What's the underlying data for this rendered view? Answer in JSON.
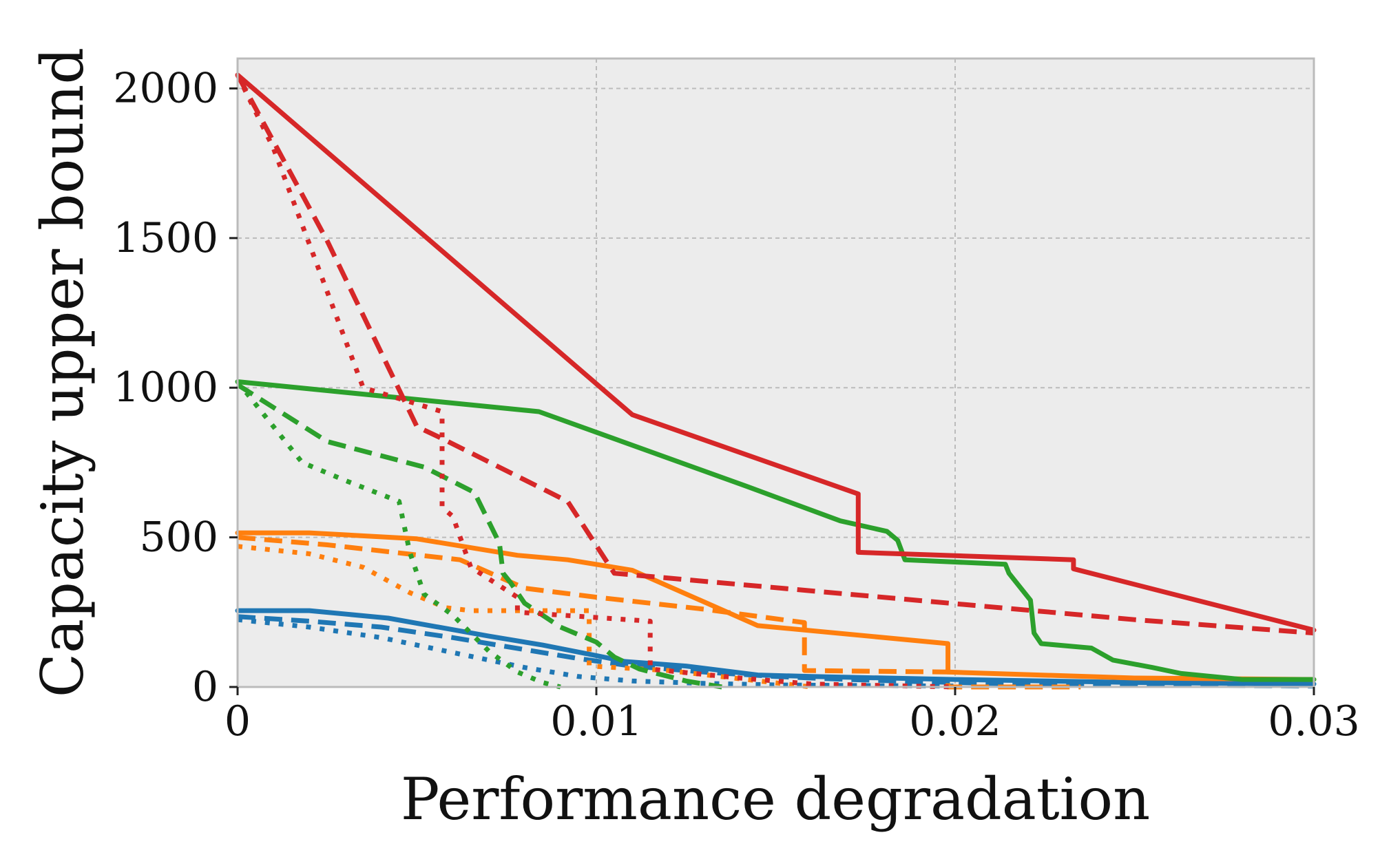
{
  "chart_data": {
    "type": "line",
    "title": "",
    "xlabel": "Performance degradation",
    "ylabel": "Capacity upper bound",
    "xlim": [
      0,
      0.03
    ],
    "ylim": [
      0,
      2100
    ],
    "x_ticks": [
      0,
      0.01,
      0.02,
      0.03
    ],
    "x_tick_labels": [
      "0",
      "0.01",
      "0.02",
      "0.03"
    ],
    "y_ticks": [
      0,
      500,
      1000,
      1500,
      2000
    ],
    "y_tick_labels": [
      "0",
      "500",
      "1000",
      "1500",
      "2000"
    ],
    "grid": true,
    "legend": "none",
    "colors": {
      "blue": "#1f77b4",
      "orange": "#ff7f0e",
      "green": "#2ca02c",
      "red": "#d62728",
      "plot_background": "#ececec",
      "grid": "#bbbbbb",
      "spine": "#bbbbbb"
    },
    "series": [
      {
        "name": "blue-solid",
        "color": "#1f77b4",
        "style": "solid",
        "x": [
          0,
          0.002,
          0.0042,
          0.007,
          0.0085,
          0.01,
          0.0108,
          0.0125,
          0.0145,
          0.016,
          0.02,
          0.025,
          0.03
        ],
        "y": [
          255,
          255,
          230,
          170,
          140,
          105,
          85,
          70,
          40,
          35,
          25,
          15,
          10
        ]
      },
      {
        "name": "blue-dashed",
        "color": "#1f77b4",
        "style": "dashed",
        "x": [
          0,
          0.002,
          0.004,
          0.006,
          0.008,
          0.0095,
          0.011,
          0.013,
          0.015,
          0.017,
          0.019,
          0.021,
          0.024,
          0.027,
          0.03
        ],
        "y": [
          235,
          220,
          200,
          165,
          125,
          95,
          70,
          50,
          35,
          25,
          18,
          12,
          8,
          5,
          3
        ]
      },
      {
        "name": "blue-dotted",
        "color": "#1f77b4",
        "style": "dotted",
        "x": [
          0,
          0.002,
          0.004,
          0.006,
          0.008,
          0.0095,
          0.011,
          0.013,
          0.015,
          0.017,
          0.02
        ],
        "y": [
          225,
          200,
          165,
          115,
          65,
          35,
          20,
          12,
          7,
          5,
          3
        ]
      },
      {
        "name": "orange-solid",
        "color": "#ff7f0e",
        "style": "solid",
        "x": [
          0,
          0.002,
          0.005,
          0.0078,
          0.0092,
          0.011,
          0.0145,
          0.0198,
          0.0198,
          0.025,
          0.03
        ],
        "y": [
          515,
          515,
          495,
          440,
          425,
          390,
          205,
          145,
          50,
          30,
          25
        ]
      },
      {
        "name": "orange-dashed",
        "color": "#ff7f0e",
        "style": "dashed",
        "x": [
          0,
          0.0025,
          0.0062,
          0.008,
          0.01,
          0.013,
          0.0158,
          0.0158,
          0.0198,
          0.0198,
          0.0235
        ],
        "y": [
          500,
          475,
          425,
          330,
          300,
          260,
          215,
          55,
          50,
          0,
          0
        ]
      },
      {
        "name": "orange-dotted",
        "color": "#ff7f0e",
        "style": "dotted",
        "x": [
          0,
          0.002,
          0.0035,
          0.0048,
          0.0058,
          0.0065,
          0.0078,
          0.0098,
          0.0098,
          0.012,
          0.016
        ],
        "y": [
          470,
          445,
          400,
          315,
          265,
          255,
          255,
          255,
          70,
          55,
          0
        ]
      },
      {
        "name": "green-solid",
        "color": "#2ca02c",
        "style": "solid",
        "x": [
          0,
          0.0084,
          0.0142,
          0.0168,
          0.0181,
          0.0184,
          0.0186,
          0.0214,
          0.0215,
          0.0221,
          0.0222,
          0.0224,
          0.0238,
          0.0244,
          0.0255,
          0.0263,
          0.028,
          0.03
        ],
        "y": [
          1020,
          920,
          670,
          555,
          520,
          490,
          425,
          410,
          380,
          290,
          180,
          145,
          130,
          90,
          65,
          45,
          25,
          25
        ]
      },
      {
        "name": "green-dashed",
        "color": "#2ca02c",
        "style": "dashed",
        "x": [
          0,
          0.0025,
          0.0052,
          0.0066,
          0.0073,
          0.0074,
          0.0076,
          0.008,
          0.0085,
          0.009,
          0.01,
          0.0105,
          0.0112,
          0.0125,
          0.0135
        ],
        "y": [
          1010,
          820,
          735,
          650,
          480,
          380,
          350,
          280,
          240,
          200,
          150,
          100,
          60,
          20,
          0
        ]
      },
      {
        "name": "green-dotted",
        "color": "#2ca02c",
        "style": "dotted",
        "x": [
          0,
          0.0018,
          0.003,
          0.0045,
          0.0048,
          0.0052,
          0.006,
          0.007,
          0.0078,
          0.0085,
          0.009
        ],
        "y": [
          1020,
          750,
          690,
          620,
          450,
          310,
          240,
          120,
          50,
          15,
          0
        ]
      },
      {
        "name": "red-solid",
        "color": "#d62728",
        "style": "solid",
        "x": [
          0,
          0.011,
          0.0173,
          0.0173,
          0.0233,
          0.0233,
          0.03
        ],
        "y": [
          2045,
          910,
          645,
          450,
          425,
          395,
          190
        ]
      },
      {
        "name": "red-dashed",
        "color": "#d62728",
        "style": "dashed",
        "x": [
          0,
          0.0025,
          0.005,
          0.0057,
          0.0092,
          0.0105,
          0.0203,
          0.025,
          0.03
        ],
        "y": [
          2045,
          1490,
          870,
          830,
          620,
          380,
          275,
          225,
          180
        ]
      },
      {
        "name": "red-dotted",
        "color": "#d62728",
        "style": "dotted",
        "x": [
          0,
          0.001,
          0.0035,
          0.0057,
          0.0057,
          0.006,
          0.0065,
          0.0078,
          0.0078,
          0.0115,
          0.0115,
          0.014,
          0.016,
          0.02
        ],
        "y": [
          2045,
          1800,
          1000,
          920,
          600,
          570,
          400,
          300,
          250,
          220,
          60,
          30,
          10,
          0
        ]
      }
    ]
  }
}
